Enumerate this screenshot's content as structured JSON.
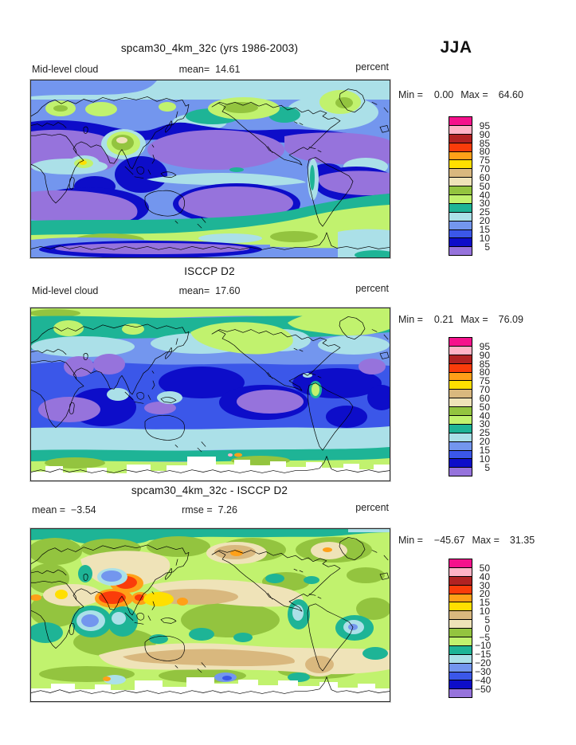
{
  "header": {
    "season": "JJA"
  },
  "panels": [
    {
      "title": "spcam30_4km_32c (yrs 1986-2003)",
      "left_label": "Mid-level cloud",
      "left_value": "",
      "center_label": "mean=",
      "center_value": "14.61",
      "unit": "percent",
      "min_label": "Min =",
      "min_value": "0.00",
      "max_label": "Max =",
      "max_value": "64.60",
      "legend": "cloud"
    },
    {
      "title": "ISCCP D2",
      "left_label": "Mid-level cloud",
      "left_value": "",
      "center_label": "mean=",
      "center_value": "17.60",
      "unit": "percent",
      "min_label": "Min =",
      "min_value": "0.21",
      "max_label": "Max =",
      "max_value": "76.09",
      "legend": "cloud"
    },
    {
      "title": "spcam30_4km_32c - ISCCP D2",
      "left_label": "mean =",
      "left_value": "−3.54",
      "center_label": "rmse =",
      "center_value": "7.26",
      "unit": "percent",
      "min_label": "Min =",
      "min_value": "−45.67",
      "max_label": "Max =",
      "max_value": "31.35",
      "legend": "diff"
    }
  ],
  "palette": [
    "#f5128c",
    "#ffb3c6",
    "#b22222",
    "#fa3c0a",
    "#ffa018",
    "#ffdf00",
    "#d9b87e",
    "#efe3b8",
    "#93c43f",
    "#c1f26e",
    "#1eb496",
    "#abe0e8",
    "#7396ee",
    "#3b57e9",
    "#0d0dc9",
    "#9673dc"
  ],
  "legends": {
    "cloud": [
      "95",
      "90",
      "85",
      "80",
      "75",
      "70",
      "60",
      "50",
      "40",
      "30",
      "25",
      "20",
      "15",
      "10",
      "5"
    ],
    "diff": [
      "50",
      "40",
      "30",
      "20",
      "15",
      "10",
      "5",
      "0",
      "−5",
      "−10",
      "−15",
      "−20",
      "−30",
      "−40",
      "−50"
    ]
  },
  "chart_data": {
    "type": "map-contour",
    "season": "JJA",
    "variable": "Mid-level cloud",
    "units": "percent",
    "projection": "global equirectangular, longitude 0-360E, latitude 90N-90S",
    "legend_position": "right of each panel",
    "colors_low_to_high": [
      "#9673dc",
      "#0d0dc9",
      "#3b57e9",
      "#7396ee",
      "#abe0e8",
      "#1eb496",
      "#c1f26e",
      "#93c43f",
      "#efe3b8",
      "#d9b87e",
      "#ffdf00",
      "#ffa018",
      "#fa3c0a",
      "#b22222",
      "#ffb3c6",
      "#f5128c"
    ],
    "panels": [
      {
        "name": "spcam30_4km_32c (yrs 1986-2003)",
        "stat": "mean",
        "mean": 14.61,
        "min": 0.0,
        "max": 64.6,
        "contour_levels": [
          5,
          10,
          15,
          20,
          25,
          30,
          40,
          50,
          60,
          70,
          75,
          80,
          85,
          90,
          95
        ]
      },
      {
        "name": "ISCCP D2",
        "stat": "mean",
        "mean": 17.6,
        "min": 0.21,
        "max": 76.09,
        "contour_levels": [
          5,
          10,
          15,
          20,
          25,
          30,
          40,
          50,
          60,
          70,
          75,
          80,
          85,
          90,
          95
        ]
      },
      {
        "name": "spcam30_4km_32c - ISCCP D2",
        "stat": "difference",
        "mean": -3.54,
        "rmse": 7.26,
        "min": -45.67,
        "max": 31.35,
        "contour_levels": [
          -50,
          -40,
          -30,
          -20,
          -15,
          -10,
          -5,
          0,
          5,
          10,
          15,
          20,
          30,
          40,
          50
        ]
      }
    ]
  }
}
